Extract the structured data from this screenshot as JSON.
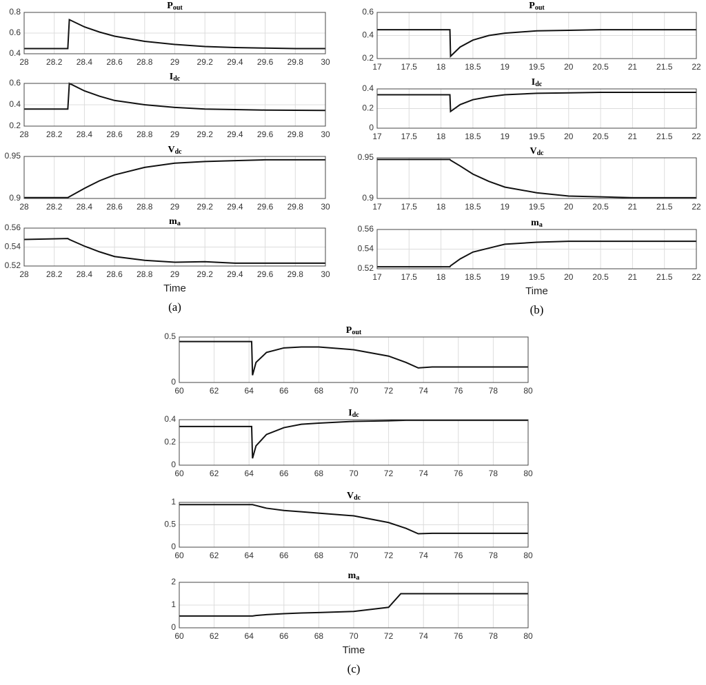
{
  "chart_data": [
    {
      "type": "line",
      "title": "P",
      "title_sub": "out",
      "grid": true,
      "color": "#111111",
      "x": [
        28,
        28.29,
        28.3,
        28.4,
        28.5,
        28.6,
        28.8,
        29,
        29.2,
        29.4,
        29.6,
        29.8,
        30
      ],
      "values": [
        0.45,
        0.45,
        0.73,
        0.66,
        0.61,
        0.57,
        0.52,
        0.49,
        0.47,
        0.46,
        0.455,
        0.45,
        0.45
      ],
      "xlim": [
        28,
        30
      ],
      "xticks": [
        28,
        28.2,
        28.4,
        28.6,
        28.8,
        29,
        29.2,
        29.4,
        29.6,
        29.8,
        30
      ],
      "ylim": [
        0.4,
        0.8
      ],
      "yticks": [
        0.4,
        0.6,
        0.8
      ]
    },
    {
      "type": "line",
      "title": "I",
      "title_sub": "dc",
      "grid": true,
      "color": "#111111",
      "x": [
        28,
        28.29,
        28.3,
        28.4,
        28.5,
        28.6,
        28.8,
        29,
        29.2,
        29.4,
        29.6,
        29.8,
        30
      ],
      "values": [
        0.36,
        0.36,
        0.6,
        0.53,
        0.48,
        0.44,
        0.4,
        0.375,
        0.36,
        0.355,
        0.35,
        0.348,
        0.347
      ],
      "xlim": [
        28,
        30
      ],
      "xticks": [
        28,
        28.2,
        28.4,
        28.6,
        28.8,
        29,
        29.2,
        29.4,
        29.6,
        29.8,
        30
      ],
      "ylim": [
        0.2,
        0.6
      ],
      "yticks": [
        0.2,
        0.4,
        0.6
      ]
    },
    {
      "type": "line",
      "title": "V",
      "title_sub": "dc",
      "grid": true,
      "color": "#111111",
      "x": [
        28,
        28.29,
        28.3,
        28.4,
        28.5,
        28.6,
        28.8,
        29,
        29.2,
        29.4,
        29.6,
        29.8,
        30
      ],
      "values": [
        0.901,
        0.901,
        0.902,
        0.912,
        0.921,
        0.928,
        0.937,
        0.942,
        0.944,
        0.945,
        0.946,
        0.946,
        0.946
      ],
      "xlim": [
        28,
        30
      ],
      "xticks": [
        28,
        28.2,
        28.4,
        28.6,
        28.8,
        29,
        29.2,
        29.4,
        29.6,
        29.8,
        30
      ],
      "ylim": [
        0.9,
        0.95
      ],
      "yticks": [
        0.9,
        0.95
      ]
    },
    {
      "type": "line",
      "title": "m",
      "title_sub": "a",
      "grid": true,
      "color": "#111111",
      "xlabel": "Time",
      "panel_label": "(a)",
      "x": [
        28,
        28.29,
        28.3,
        28.4,
        28.5,
        28.6,
        28.8,
        29,
        29.2,
        29.4,
        29.6,
        29.8,
        30
      ],
      "values": [
        0.548,
        0.549,
        0.548,
        0.541,
        0.535,
        0.53,
        0.526,
        0.524,
        0.5245,
        0.523,
        0.523,
        0.523,
        0.523
      ],
      "xlim": [
        28,
        30
      ],
      "xticks": [
        28,
        28.2,
        28.4,
        28.6,
        28.8,
        29,
        29.2,
        29.4,
        29.6,
        29.8,
        30
      ],
      "ylim": [
        0.52,
        0.56
      ],
      "yticks": [
        0.52,
        0.54,
        0.56
      ]
    },
    {
      "type": "line",
      "title": "P",
      "title_sub": "out",
      "grid": true,
      "color": "#111111",
      "x": [
        17,
        18.14,
        18.15,
        18.3,
        18.5,
        18.75,
        19,
        19.5,
        20,
        20.5,
        21,
        22
      ],
      "values": [
        0.45,
        0.45,
        0.22,
        0.3,
        0.36,
        0.4,
        0.42,
        0.44,
        0.445,
        0.45,
        0.45,
        0.45
      ],
      "xlim": [
        17,
        22
      ],
      "xticks": [
        17,
        17.5,
        18,
        18.5,
        19,
        19.5,
        20,
        20.5,
        21,
        21.5,
        22
      ],
      "ylim": [
        0.2,
        0.6
      ],
      "yticks": [
        0.2,
        0.4,
        0.6
      ]
    },
    {
      "type": "line",
      "title": "I",
      "title_sub": "dc",
      "grid": true,
      "color": "#111111",
      "x": [
        17,
        18.14,
        18.15,
        18.3,
        18.5,
        18.75,
        19,
        19.5,
        20,
        20.5,
        21,
        22
      ],
      "values": [
        0.34,
        0.34,
        0.17,
        0.24,
        0.29,
        0.32,
        0.34,
        0.355,
        0.36,
        0.365,
        0.365,
        0.365
      ],
      "xlim": [
        17,
        22
      ],
      "xticks": [
        17,
        17.5,
        18,
        18.5,
        19,
        19.5,
        20,
        20.5,
        21,
        21.5,
        22
      ],
      "ylim": [
        0,
        0.4
      ],
      "yticks": [
        0,
        0.2,
        0.4
      ]
    },
    {
      "type": "line",
      "title": "V",
      "title_sub": "dc",
      "grid": true,
      "color": "#111111",
      "x": [
        17,
        18.14,
        18.15,
        18.3,
        18.5,
        18.75,
        19,
        19.5,
        20,
        20.5,
        21,
        22
      ],
      "values": [
        0.948,
        0.948,
        0.947,
        0.94,
        0.93,
        0.921,
        0.914,
        0.907,
        0.903,
        0.902,
        0.901,
        0.901
      ],
      "xlim": [
        17,
        22
      ],
      "xticks": [
        17,
        17.5,
        18,
        18.5,
        19,
        19.5,
        20,
        20.5,
        21,
        21.5,
        22
      ],
      "ylim": [
        0.9,
        0.95
      ],
      "yticks": [
        0.9,
        0.95
      ]
    },
    {
      "type": "line",
      "title": "m",
      "title_sub": "a",
      "grid": true,
      "color": "#111111",
      "xlabel": "Time",
      "panel_label": "(b)",
      "x": [
        17,
        18.14,
        18.15,
        18.3,
        18.5,
        18.75,
        19,
        19.5,
        20,
        20.5,
        21,
        22
      ],
      "values": [
        0.522,
        0.522,
        0.523,
        0.53,
        0.537,
        0.541,
        0.545,
        0.547,
        0.548,
        0.548,
        0.548,
        0.548
      ],
      "xlim": [
        17,
        22
      ],
      "xticks": [
        17,
        17.5,
        18,
        18.5,
        19,
        19.5,
        20,
        20.5,
        21,
        21.5,
        22
      ],
      "ylim": [
        0.52,
        0.56
      ],
      "yticks": [
        0.52,
        0.54,
        0.56
      ]
    },
    {
      "type": "line",
      "title": "P",
      "title_sub": "out",
      "grid": true,
      "color": "#111111",
      "x": [
        60,
        64.15,
        64.2,
        64.4,
        65,
        66,
        67,
        68,
        70,
        72,
        73,
        73.7,
        74.5,
        76,
        80
      ],
      "values": [
        0.45,
        0.45,
        0.08,
        0.22,
        0.33,
        0.38,
        0.39,
        0.39,
        0.36,
        0.29,
        0.22,
        0.16,
        0.17,
        0.17,
        0.17
      ],
      "xlim": [
        60,
        80
      ],
      "xticks": [
        60,
        62,
        64,
        66,
        68,
        70,
        72,
        74,
        76,
        78,
        80
      ],
      "ylim": [
        0,
        0.5
      ],
      "yticks": [
        0,
        0.5
      ]
    },
    {
      "type": "line",
      "title": "I",
      "title_sub": "dc",
      "grid": true,
      "color": "#111111",
      "x": [
        60,
        64.15,
        64.2,
        64.4,
        65,
        66,
        67,
        68,
        70,
        72,
        73,
        73.7,
        74.5,
        76,
        80
      ],
      "values": [
        0.34,
        0.34,
        0.06,
        0.17,
        0.27,
        0.33,
        0.36,
        0.37,
        0.385,
        0.39,
        0.395,
        0.395,
        0.395,
        0.395,
        0.395
      ],
      "xlim": [
        60,
        80
      ],
      "xticks": [
        60,
        62,
        64,
        66,
        68,
        70,
        72,
        74,
        76,
        78,
        80
      ],
      "ylim": [
        0,
        0.4
      ],
      "yticks": [
        0,
        0.2,
        0.4
      ]
    },
    {
      "type": "line",
      "title": "V",
      "title_sub": "dc",
      "grid": true,
      "color": "#111111",
      "x": [
        60,
        64.15,
        64.2,
        64.4,
        65,
        66,
        67,
        68,
        70,
        72,
        73,
        73.7,
        74.5,
        76,
        80
      ],
      "values": [
        0.95,
        0.95,
        0.95,
        0.93,
        0.87,
        0.82,
        0.79,
        0.76,
        0.7,
        0.55,
        0.42,
        0.3,
        0.31,
        0.31,
        0.31
      ],
      "xlim": [
        60,
        80
      ],
      "xticks": [
        60,
        62,
        64,
        66,
        68,
        70,
        72,
        74,
        76,
        78,
        80
      ],
      "ylim": [
        0,
        1
      ],
      "yticks": [
        0,
        0.5,
        1
      ]
    },
    {
      "type": "line",
      "title": "m",
      "title_sub": "a",
      "grid": true,
      "color": "#111111",
      "xlabel": "Time",
      "panel_label": "(c)",
      "x": [
        60,
        64.15,
        64.2,
        64.4,
        65,
        66,
        67,
        68,
        70,
        72,
        72.7,
        73.7,
        74.5,
        76,
        80
      ],
      "values": [
        0.52,
        0.52,
        0.52,
        0.54,
        0.58,
        0.62,
        0.65,
        0.67,
        0.72,
        0.9,
        1.5,
        1.5,
        1.5,
        1.5,
        1.5
      ],
      "xlim": [
        60,
        80
      ],
      "xticks": [
        60,
        62,
        64,
        66,
        68,
        70,
        72,
        74,
        76,
        78,
        80
      ],
      "ylim": [
        0,
        2
      ],
      "yticks": [
        0,
        1,
        2
      ]
    }
  ]
}
